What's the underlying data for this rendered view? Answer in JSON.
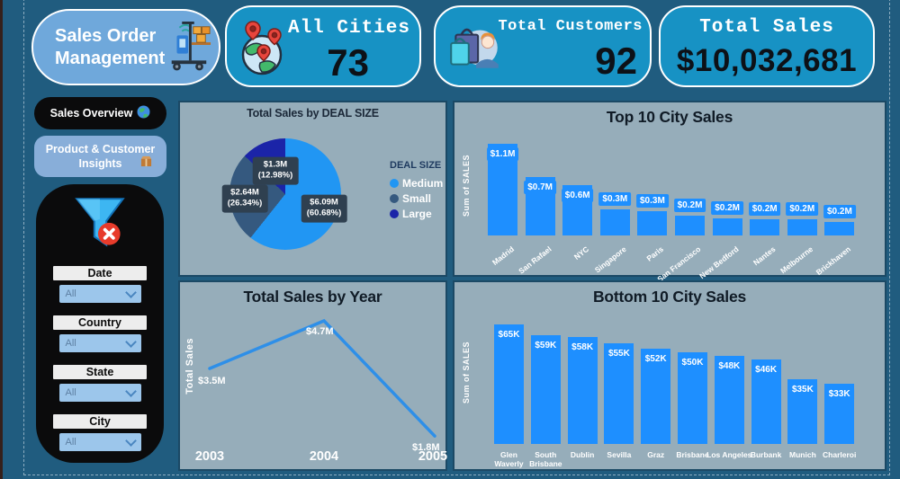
{
  "app": {
    "title_line1": "Sales Order",
    "title_line2": "Management"
  },
  "kpi_cards": [
    {
      "label": "All Cities",
      "value": "73"
    },
    {
      "label": "Total Customers",
      "value": "92"
    },
    {
      "label": "Total Sales",
      "value": "$10,032,681"
    }
  ],
  "sidebar": {
    "nav_sales_overview": "Sales Overview",
    "nav_product_customer": "Product & Customer Insights",
    "filters": [
      {
        "label": "Date",
        "value": "All"
      },
      {
        "label": "Country",
        "value": "All"
      },
      {
        "label": "State",
        "value": "All"
      },
      {
        "label": "City",
        "value": "All"
      }
    ]
  },
  "colors": {
    "page_bg": "#205C7F",
    "panel_bg": "#96ADBA",
    "card_bg": "#1792C4",
    "accent_bar_blue": "#1E8FFF",
    "pie_medium": "#2196F3",
    "pie_small": "#35597F",
    "pie_large": "#1B24A8"
  },
  "chart_data": [
    {
      "type": "pie",
      "title": "Total Sales by DEAL SIZE",
      "legend_title": "DEAL SIZE",
      "legend_position": "right",
      "slices": [
        {
          "label": "Medium",
          "value_label": "$6.09M",
          "pct": 60.68,
          "color": "#2196F3"
        },
        {
          "label": "Small",
          "value_label": "$2.64M",
          "pct": 26.34,
          "color": "#35597F"
        },
        {
          "label": "Large",
          "value_label": "$1.3M",
          "pct": 12.98,
          "color": "#1B24A8"
        }
      ]
    },
    {
      "type": "bar",
      "title": "Top 10 City Sales",
      "ylabel": "Sum of SALES",
      "categories": [
        "Madrid",
        "San Rafael",
        "NYC",
        "Singapore",
        "Paris",
        "San Francisco",
        "New Bedford",
        "Nantes",
        "Melbourne",
        "Brickhaven"
      ],
      "values": [
        1.1,
        0.7,
        0.6,
        0.31,
        0.29,
        0.24,
        0.21,
        0.2,
        0.2,
        0.16
      ],
      "value_labels": [
        "$1.1M",
        "$0.7M",
        "$0.6M",
        "$0.3M",
        "$0.3M",
        "$0.2M",
        "$0.2M",
        "$0.2M",
        "$0.2M",
        "$0.2M"
      ],
      "unit": "millions USD"
    },
    {
      "type": "line",
      "title": "Total Sales by Year",
      "ylabel": "Total Sales",
      "x": [
        "2003",
        "2004",
        "2005"
      ],
      "values": [
        3.5,
        4.7,
        1.8
      ],
      "value_labels": [
        "$3.5M",
        "$4.7M",
        "$1.8M"
      ],
      "unit": "millions USD"
    },
    {
      "type": "bar",
      "title": "Bottom 10 City Sales",
      "ylabel": "Sum of SALES",
      "categories": [
        "Glen Waverly",
        "South Brisbane",
        "Dublin",
        "Sevilla",
        "Graz",
        "Brisbane",
        "Los Angeles",
        "Burbank",
        "Munich",
        "Charleroi"
      ],
      "values": [
        65,
        59,
        58,
        55,
        52,
        50,
        48,
        46,
        35,
        33
      ],
      "value_labels": [
        "$65K",
        "$59K",
        "$58K",
        "$55K",
        "$52K",
        "$50K",
        "$48K",
        "$46K",
        "$35K",
        "$33K"
      ],
      "unit": "thousands USD"
    }
  ]
}
